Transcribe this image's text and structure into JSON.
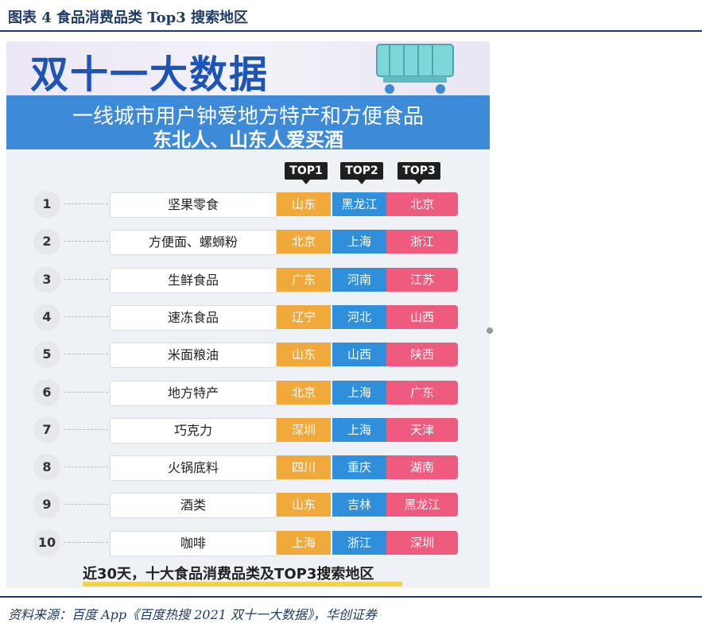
{
  "figure": {
    "caption": "图表 4    食品消费品类 Top3 搜索地区",
    "source": "资料来源：百度 App《百度热搜 2021 双十一大数据》，华创证券"
  },
  "infographic": {
    "headline": "双十一大数据",
    "subtitle_line1": "一线城市用户钟爱地方特产和方便食品",
    "subtitle_line2": "东北人、山东人爱买酒",
    "top_labels": [
      "TOP1",
      "TOP2",
      "TOP3"
    ],
    "rows": [
      {
        "rank": "1",
        "category": "坚果零食",
        "top1": "山东",
        "top2": "黑龙江",
        "top3": "北京"
      },
      {
        "rank": "2",
        "category": "方便面、螺蛳粉",
        "top1": "北京",
        "top2": "上海",
        "top3": "浙江"
      },
      {
        "rank": "3",
        "category": "生鲜食品",
        "top1": "广东",
        "top2": "河南",
        "top3": "江苏"
      },
      {
        "rank": "4",
        "category": "速冻食品",
        "top1": "辽宁",
        "top2": "河北",
        "top3": "山西"
      },
      {
        "rank": "5",
        "category": "米面粮油",
        "top1": "山东",
        "top2": "山西",
        "top3": "陕西"
      },
      {
        "rank": "6",
        "category": "地方特产",
        "top1": "北京",
        "top2": "上海",
        "top3": "广东"
      },
      {
        "rank": "7",
        "category": "巧克力",
        "top1": "深圳",
        "top2": "上海",
        "top3": "天津"
      },
      {
        "rank": "8",
        "category": "火锅底料",
        "top1": "四川",
        "top2": "重庆",
        "top3": "湖南"
      },
      {
        "rank": "9",
        "category": "酒类",
        "top1": "山东",
        "top2": "吉林",
        "top3": "黑龙江"
      },
      {
        "rank": "10",
        "category": "咖啡",
        "top1": "上海",
        "top2": "浙江",
        "top3": "深圳"
      }
    ],
    "footer_note": "近30天，十大食品消费品类及TOP3搜索地区"
  },
  "colors": {
    "top1": "#f2a93b",
    "top2": "#2f8fdb",
    "top3": "#ef5b7f",
    "headline": "#1c54b8",
    "banner": "#3d8ad8",
    "caption": "#1f3b66"
  },
  "icons": {
    "hero": "shopping-cart-icon"
  }
}
